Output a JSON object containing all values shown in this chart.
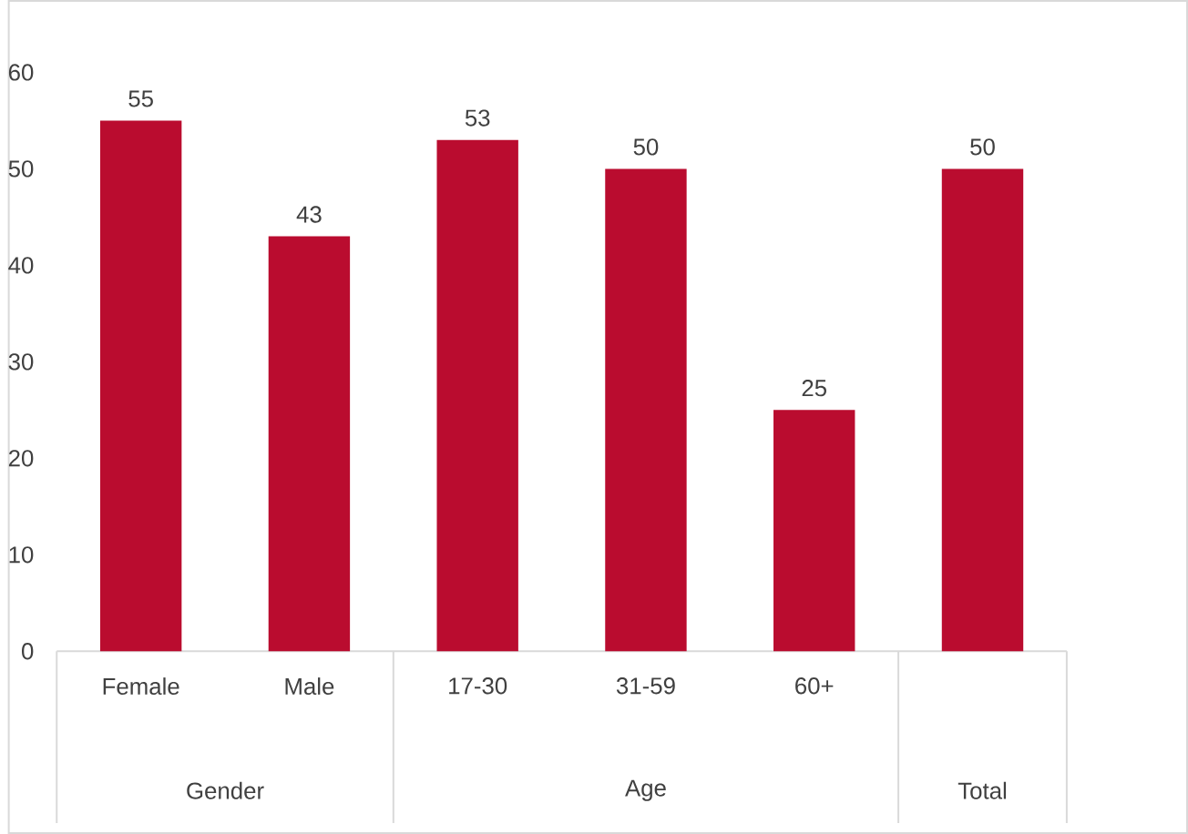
{
  "chart_data": {
    "type": "bar",
    "categories": [
      "Female",
      "Male",
      "17-30",
      "31-59",
      "60+",
      null
    ],
    "values": [
      55,
      43,
      53,
      50,
      25,
      50
    ],
    "color": "#ba0c2f",
    "ylim": [
      0,
      60
    ],
    "yticks": [
      0,
      10,
      20,
      30,
      40,
      50,
      60
    ],
    "data_labels": true,
    "annotations": [
      "Gender",
      "Age",
      "Total"
    ]
  }
}
